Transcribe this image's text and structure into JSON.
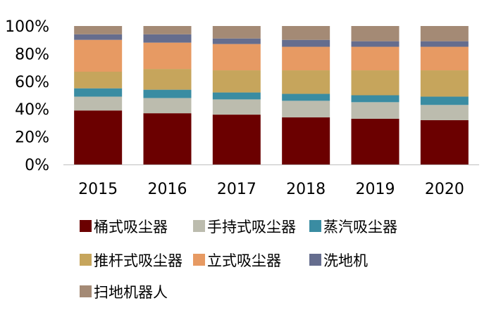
{
  "chart_data": {
    "type": "bar",
    "stacked": true,
    "normalized": true,
    "categories": [
      "2015",
      "2016",
      "2017",
      "2018",
      "2019",
      "2020"
    ],
    "series": [
      {
        "name": "桶式吸尘器",
        "color": "#6b0000",
        "values": [
          39,
          37,
          36,
          34,
          33,
          32
        ]
      },
      {
        "name": "手持式吸尘器",
        "color": "#bcbcae",
        "values": [
          10,
          11,
          11,
          12,
          12,
          11
        ]
      },
      {
        "name": "蒸汽吸尘器",
        "color": "#3a8ca2",
        "values": [
          6,
          6,
          5,
          5,
          5,
          6
        ]
      },
      {
        "name": "推杆式吸尘器",
        "color": "#c6a55c",
        "values": [
          12,
          15,
          16,
          17,
          18,
          19
        ]
      },
      {
        "name": "立式吸尘器",
        "color": "#e79a63",
        "values": [
          23,
          19,
          19,
          17,
          17,
          17
        ]
      },
      {
        "name": "洗地机",
        "color": "#656d8e",
        "values": [
          4,
          6,
          4,
          5,
          4,
          4
        ]
      },
      {
        "name": "扫地机器人",
        "color": "#a48a75",
        "values": [
          6,
          6,
          9,
          10,
          11,
          11
        ]
      }
    ],
    "y_ticks": [
      "0%",
      "20%",
      "40%",
      "60%",
      "80%",
      "100%"
    ],
    "ylim": [
      0,
      100
    ],
    "grid": false,
    "legend_position": "bottom"
  }
}
